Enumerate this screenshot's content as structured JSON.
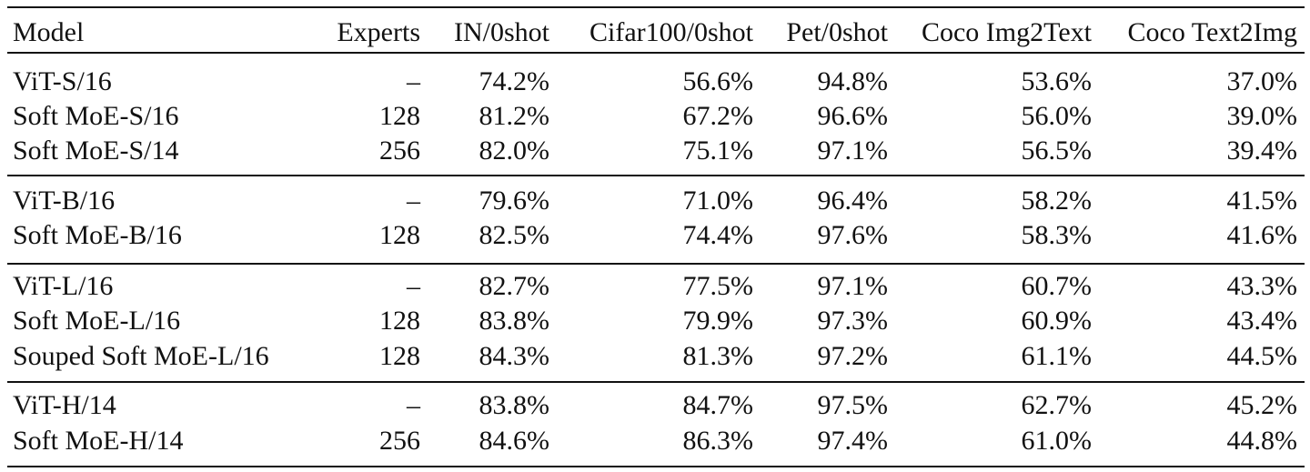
{
  "table": {
    "header": [
      "Model",
      "Experts",
      "IN/0shot",
      "Cifar100/0shot",
      "Pet/0shot",
      "Coco Img2Text",
      "Coco Text2Img"
    ],
    "groups": [
      [
        [
          "ViT-S/16",
          "–",
          "74.2%",
          "56.6%",
          "94.8%",
          "53.6%",
          "37.0%"
        ],
        [
          "Soft MoE-S/16",
          "128",
          "81.2%",
          "67.2%",
          "96.6%",
          "56.0%",
          "39.0%"
        ],
        [
          "Soft MoE-S/14",
          "256",
          "82.0%",
          "75.1%",
          "97.1%",
          "56.5%",
          "39.4%"
        ]
      ],
      [
        [
          "ViT-B/16",
          "–",
          "79.6%",
          "71.0%",
          "96.4%",
          "58.2%",
          "41.5%"
        ],
        [
          "Soft MoE-B/16",
          "128",
          "82.5%",
          "74.4%",
          "97.6%",
          "58.3%",
          "41.6%"
        ]
      ],
      [
        [
          "ViT-L/16",
          "–",
          "82.7%",
          "77.5%",
          "97.1%",
          "60.7%",
          "43.3%"
        ],
        [
          "Soft MoE-L/16",
          "128",
          "83.8%",
          "79.9%",
          "97.3%",
          "60.9%",
          "43.4%"
        ],
        [
          "Souped Soft MoE-L/16",
          "128",
          "84.3%",
          "81.3%",
          "97.2%",
          "61.1%",
          "44.5%"
        ]
      ],
      [
        [
          "ViT-H/14",
          "–",
          "83.8%",
          "84.7%",
          "97.5%",
          "62.7%",
          "45.2%"
        ],
        [
          "Soft MoE-H/14",
          "256",
          "84.6%",
          "86.3%",
          "97.4%",
          "61.0%",
          "44.8%"
        ]
      ]
    ]
  }
}
